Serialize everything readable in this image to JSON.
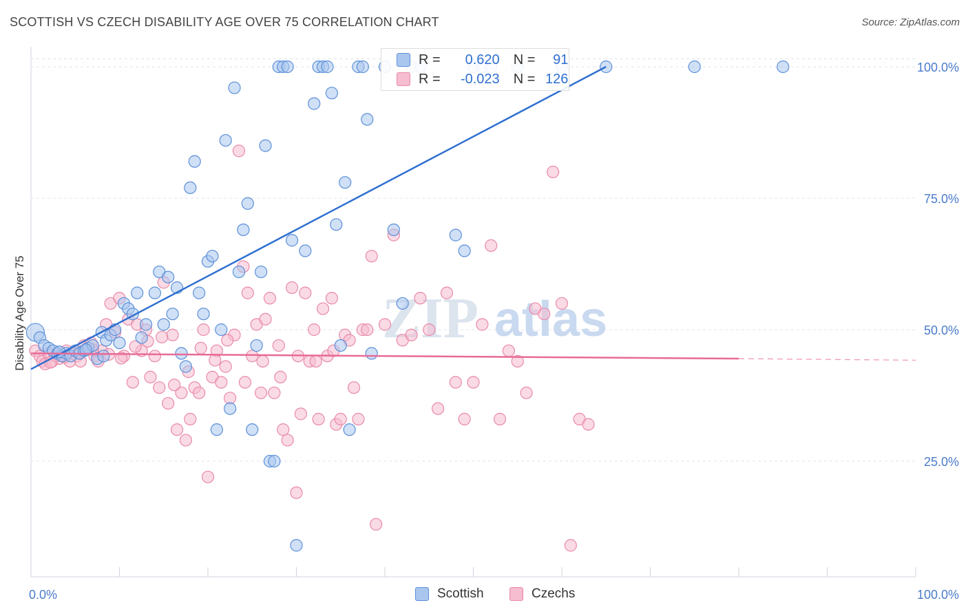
{
  "title": "SCOTTISH VS CZECH DISABILITY AGE OVER 75 CORRELATION CHART",
  "source": "Source: ZipAtlas.com",
  "watermark": {
    "zip": "ZIP",
    "atlas": "atlas"
  },
  "legend": {
    "r_label": "R =",
    "n_label": "N =",
    "scottish": {
      "r": "0.620",
      "n": "91"
    },
    "czechs": {
      "r": "-0.023",
      "n": "126"
    }
  },
  "bottom_legend": {
    "scottish": "Scottish",
    "czechs": "Czechs"
  },
  "colors": {
    "scottish_fill": "#a9c6ef",
    "scottish_stroke": "#5b8fd8",
    "scottish_line": "#2f6fd0",
    "czech_fill": "#f6bcd0",
    "czech_stroke": "#e88aa9",
    "czech_line": "#e86a98",
    "tick_label": "#4a7bcb",
    "grid": "#dde3ec"
  },
  "chart_data": {
    "type": "scatter",
    "title": "SCOTTISH VS CZECH DISABILITY AGE OVER 75 CORRELATION CHART",
    "xlabel": "",
    "ylabel": "Disability Age Over 75",
    "xlim": [
      0,
      100
    ],
    "ylim": [
      0,
      102
    ],
    "x_tick_labels": [
      "0.0%",
      "100.0%"
    ],
    "y_tick_labels": [
      "25.0%",
      "50.0%",
      "75.0%",
      "100.0%"
    ],
    "y_ticks": [
      25,
      50,
      75,
      100
    ],
    "grid": true,
    "legend_position": "top-center",
    "series": [
      {
        "name": "Scottish",
        "r": 0.62,
        "n": 91,
        "trend": {
          "x": [
            0,
            65
          ],
          "y": [
            42.5,
            100
          ],
          "style": "solid"
        },
        "points": [
          [
            0.5,
            49.5
          ],
          [
            1,
            48.5
          ],
          [
            1.5,
            47
          ],
          [
            2,
            46.5
          ],
          [
            2.5,
            46
          ],
          [
            3,
            45.5
          ],
          [
            3.5,
            45
          ],
          [
            4,
            45.5
          ],
          [
            4.5,
            45
          ],
          [
            5,
            46
          ],
          [
            5.5,
            45.5
          ],
          [
            6,
            46
          ],
          [
            6.5,
            46.5
          ],
          [
            7,
            47
          ],
          [
            7.5,
            44.5
          ],
          [
            8,
            49.5
          ],
          [
            8.5,
            48
          ],
          [
            9,
            49
          ],
          [
            9.5,
            50
          ],
          [
            10,
            47.5
          ],
          [
            10.5,
            55
          ],
          [
            11,
            54
          ],
          [
            11.5,
            53
          ],
          [
            12,
            57
          ],
          [
            13,
            51
          ],
          [
            14,
            57
          ],
          [
            14.5,
            61
          ],
          [
            15,
            51
          ],
          [
            15.5,
            60
          ],
          [
            16,
            53
          ],
          [
            16.5,
            58
          ],
          [
            17,
            45.5
          ],
          [
            17.5,
            43
          ],
          [
            18,
            77
          ],
          [
            18.5,
            82
          ],
          [
            19,
            57
          ],
          [
            19.5,
            53
          ],
          [
            20,
            63
          ],
          [
            20.5,
            64
          ],
          [
            21,
            31
          ],
          [
            21.5,
            50
          ],
          [
            22,
            86
          ],
          [
            22.5,
            35
          ],
          [
            23,
            96
          ],
          [
            23.5,
            61
          ],
          [
            24,
            69
          ],
          [
            24.5,
            74
          ],
          [
            25,
            31
          ],
          [
            25.5,
            47
          ],
          [
            26,
            61
          ],
          [
            26.5,
            85
          ],
          [
            27,
            25
          ],
          [
            27.5,
            25
          ],
          [
            28,
            100
          ],
          [
            28.5,
            100
          ],
          [
            29,
            100
          ],
          [
            29.5,
            67
          ],
          [
            30,
            9
          ],
          [
            31,
            65
          ],
          [
            32,
            93
          ],
          [
            32.5,
            100
          ],
          [
            33,
            100
          ],
          [
            33.5,
            100
          ],
          [
            34,
            95
          ],
          [
            34.5,
            70
          ],
          [
            35,
            47
          ],
          [
            35.5,
            78
          ],
          [
            36,
            31
          ],
          [
            37,
            100
          ],
          [
            37.5,
            100
          ],
          [
            38,
            90
          ],
          [
            38.5,
            45.5
          ],
          [
            40,
            100
          ],
          [
            41,
            69
          ],
          [
            42,
            55
          ],
          [
            43,
            100
          ],
          [
            44,
            100
          ],
          [
            48,
            68
          ],
          [
            49,
            65
          ],
          [
            50,
            100
          ],
          [
            51,
            100
          ],
          [
            52,
            100
          ],
          [
            55,
            100
          ],
          [
            60,
            100
          ],
          [
            65,
            100
          ],
          [
            75,
            100
          ],
          [
            85,
            100
          ],
          [
            3.2,
            45.8
          ],
          [
            6.2,
            46.2
          ],
          [
            8.2,
            45
          ],
          [
            12.5,
            48.5
          ]
        ]
      },
      {
        "name": "Czechs",
        "r": -0.023,
        "n": 126,
        "trend": {
          "x": [
            0,
            80,
            100
          ],
          "y": [
            45.5,
            44.5,
            44.2
          ],
          "style": "solid-then-dashed"
        },
        "points": [
          [
            0.5,
            46
          ],
          [
            1,
            45
          ],
          [
            1.3,
            44
          ],
          [
            1.6,
            43.5
          ],
          [
            2,
            45.5
          ],
          [
            2.4,
            44
          ],
          [
            2.8,
            45
          ],
          [
            3.2,
            44.5
          ],
          [
            3.6,
            45
          ],
          [
            4,
            46
          ],
          [
            4.4,
            44
          ],
          [
            4.8,
            45.5
          ],
          [
            5.2,
            45
          ],
          [
            5.6,
            44
          ],
          [
            6,
            47
          ],
          [
            6.4,
            46.5
          ],
          [
            6.8,
            47.5
          ],
          [
            7.2,
            45
          ],
          [
            7.6,
            44
          ],
          [
            8,
            46
          ],
          [
            8.5,
            51
          ],
          [
            9,
            55
          ],
          [
            9.5,
            49.5
          ],
          [
            10,
            56
          ],
          [
            10.5,
            45
          ],
          [
            11,
            52
          ],
          [
            11.5,
            40
          ],
          [
            12,
            51
          ],
          [
            12.5,
            46
          ],
          [
            13,
            50
          ],
          [
            13.5,
            41
          ],
          [
            14,
            45
          ],
          [
            14.5,
            39
          ],
          [
            15,
            59
          ],
          [
            15.5,
            36
          ],
          [
            16,
            49
          ],
          [
            16.5,
            31
          ],
          [
            17,
            38
          ],
          [
            17.5,
            29
          ],
          [
            18,
            33
          ],
          [
            18.5,
            39
          ],
          [
            19,
            38
          ],
          [
            19.5,
            50
          ],
          [
            20,
            22
          ],
          [
            20.5,
            41
          ],
          [
            21,
            46
          ],
          [
            21.5,
            40
          ],
          [
            22,
            43
          ],
          [
            22.5,
            37
          ],
          [
            23,
            49
          ],
          [
            23.5,
            84
          ],
          [
            24,
            62
          ],
          [
            24.5,
            57
          ],
          [
            25,
            45
          ],
          [
            25.5,
            51
          ],
          [
            26,
            38
          ],
          [
            26.5,
            52
          ],
          [
            27,
            56
          ],
          [
            27.5,
            38
          ],
          [
            28,
            47
          ],
          [
            28.5,
            31
          ],
          [
            29,
            29
          ],
          [
            29.5,
            58
          ],
          [
            30,
            19
          ],
          [
            30.5,
            34
          ],
          [
            31,
            57
          ],
          [
            31.5,
            44
          ],
          [
            32,
            50
          ],
          [
            32.5,
            33
          ],
          [
            33,
            54
          ],
          [
            33.5,
            45
          ],
          [
            34,
            56
          ],
          [
            34.5,
            32
          ],
          [
            35,
            33
          ],
          [
            35.5,
            49
          ],
          [
            36,
            48
          ],
          [
            36.5,
            39
          ],
          [
            37,
            33
          ],
          [
            37.5,
            50
          ],
          [
            38,
            50
          ],
          [
            38.5,
            64
          ],
          [
            39,
            13
          ],
          [
            40,
            51
          ],
          [
            41,
            68
          ],
          [
            42,
            48
          ],
          [
            43,
            49
          ],
          [
            44,
            56
          ],
          [
            45,
            50
          ],
          [
            46,
            35
          ],
          [
            47,
            57
          ],
          [
            48,
            40
          ],
          [
            49,
            33
          ],
          [
            50,
            40
          ],
          [
            51,
            51
          ],
          [
            52,
            66
          ],
          [
            53,
            33
          ],
          [
            54,
            46
          ],
          [
            55,
            44
          ],
          [
            56,
            38
          ],
          [
            57,
            54
          ],
          [
            58,
            53
          ],
          [
            59,
            80
          ],
          [
            60,
            55
          ],
          [
            61,
            9
          ],
          [
            62,
            33
          ],
          [
            63,
            32
          ],
          [
            2.2,
            43.8
          ],
          [
            3.8,
            44.8
          ],
          [
            5.4,
            45.6
          ],
          [
            7,
            46.2
          ],
          [
            8.8,
            45.3
          ],
          [
            10.2,
            44.6
          ],
          [
            11.8,
            46.8
          ],
          [
            13.2,
            47.8
          ],
          [
            14.8,
            48.6
          ],
          [
            16.2,
            39.5
          ],
          [
            17.8,
            42
          ],
          [
            19.2,
            46.5
          ],
          [
            20.8,
            44.2
          ],
          [
            22.2,
            48
          ],
          [
            24.2,
            40
          ],
          [
            26.2,
            44
          ],
          [
            28.2,
            41
          ],
          [
            30.2,
            45
          ],
          [
            32.2,
            44
          ],
          [
            34.2,
            46
          ]
        ]
      }
    ]
  }
}
